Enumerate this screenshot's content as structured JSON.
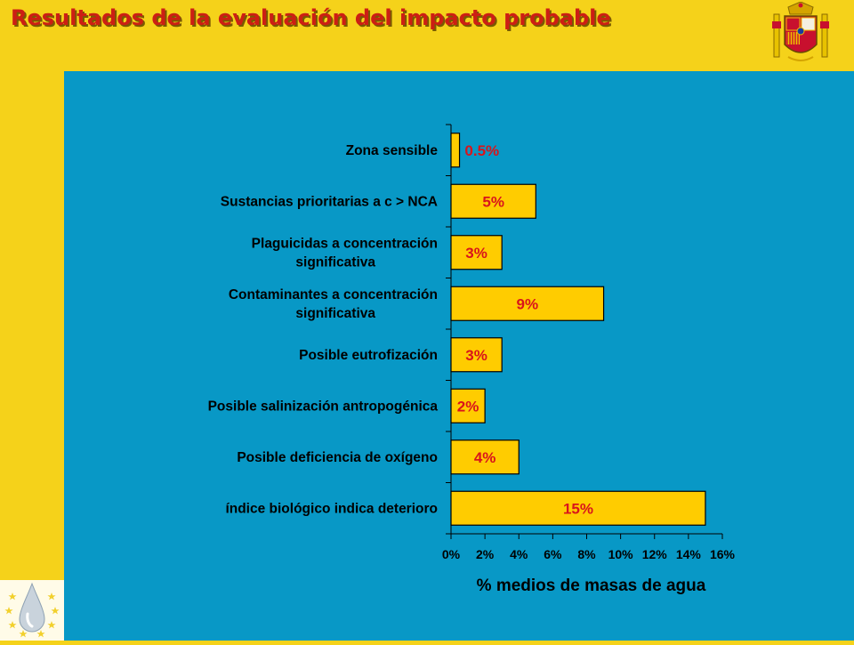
{
  "slide": {
    "title": "Resultados de la evaluación del impacto probable",
    "crest_icon": "spain-coat-of-arms",
    "logo_icon": "water-drop-eu-stars-logo",
    "colors": {
      "background": "#f5d21a",
      "panel": "#0898c6",
      "title": "#cc1f14",
      "bar_fill": "#ffcc00",
      "data_label": "#d9141b"
    }
  },
  "chart_data": {
    "type": "bar",
    "orientation": "horizontal",
    "categories": [
      [
        "Zona sensible"
      ],
      [
        "Sustancias prioritarias a c > NCA"
      ],
      [
        "Plaguicidas a concentración",
        "significativa"
      ],
      [
        "Contaminantes a concentración",
        "significativa"
      ],
      [
        "Posible eutrofización"
      ],
      [
        "Posible salinización antropogénica"
      ],
      [
        "Posible deficiencia de oxígeno"
      ],
      [
        "índice biológico indica deterioro"
      ]
    ],
    "values": [
      0.5,
      5,
      3,
      9,
      3,
      2,
      4,
      15
    ],
    "data_labels": [
      "0.5%",
      "5%",
      "3%",
      "9%",
      "3%",
      "2%",
      "4%",
      "15%"
    ],
    "xlim": [
      0,
      16
    ],
    "x_ticks": [
      "0%",
      "2%",
      "4%",
      "6%",
      "8%",
      "10%",
      "12%",
      "14%",
      "16%"
    ],
    "xlabel": "% medios de masas de agua",
    "grid": false,
    "legend": "none"
  }
}
